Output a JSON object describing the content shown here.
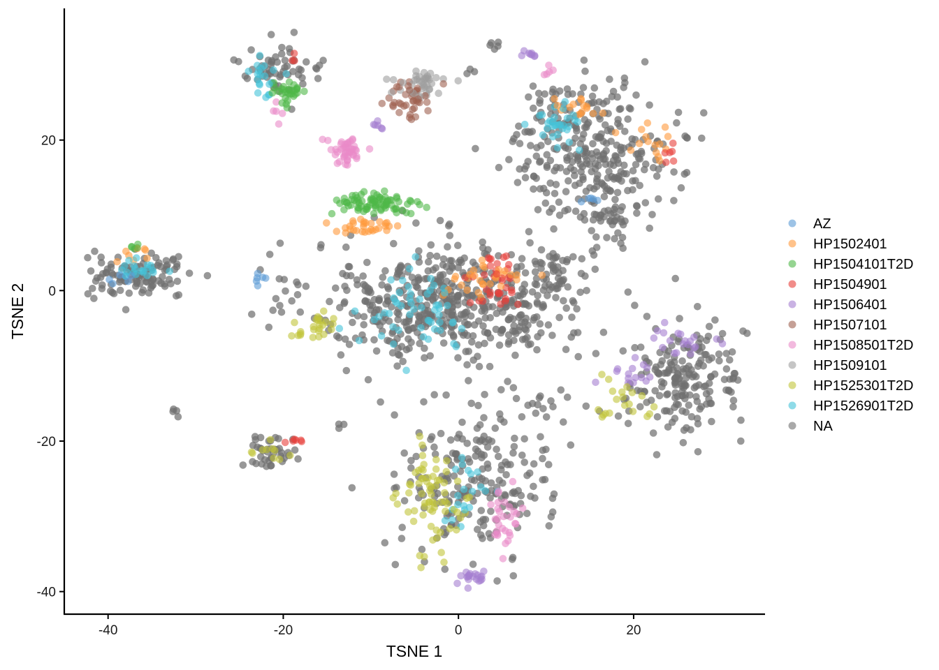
{
  "chart_data": {
    "type": "scatter",
    "xlabel": "TSNE 1",
    "ylabel": "TSNE 2",
    "xlim": [
      -45,
      35
    ],
    "ylim": [
      -43,
      37.5
    ],
    "x_ticks": [
      -40,
      -20,
      0,
      20
    ],
    "y_ticks": [
      -40,
      -20,
      0,
      20
    ],
    "grid": false,
    "legend_position": "right",
    "marker_opacity": 0.6,
    "series": [
      {
        "name": "AZ",
        "color": "#5b9bd5"
      },
      {
        "name": "HP1502401",
        "color": "#ff9a3c"
      },
      {
        "name": "HP1504101T2D",
        "color": "#4fb848"
      },
      {
        "name": "HP1504901",
        "color": "#e8403a"
      },
      {
        "name": "HP1506401",
        "color": "#a57ed0"
      },
      {
        "name": "HP1507101",
        "color": "#9e6050"
      },
      {
        "name": "HP1508501T2D",
        "color": "#ea8ac8"
      },
      {
        "name": "HP1509101",
        "color": "#9e9e9e"
      },
      {
        "name": "HP1525301T2D",
        "color": "#c1c43a"
      },
      {
        "name": "HP1526901T2D",
        "color": "#45c3d8"
      },
      {
        "name": "NA",
        "color": "#707070"
      }
    ],
    "clusters": [
      {
        "name": "NA",
        "cx": -1,
        "cy": -1.5,
        "sx": 8,
        "sy": 4,
        "n": 520
      },
      {
        "name": "NA",
        "cx": 15,
        "cy": 19,
        "sx": 4.5,
        "sy": 4.5,
        "n": 300
      },
      {
        "name": "NA",
        "cx": 26,
        "cy": -12,
        "sx": 3.5,
        "sy": 3.5,
        "n": 190
      },
      {
        "name": "NA",
        "cx": 2,
        "cy": -25,
        "sx": 4.2,
        "sy": 5,
        "n": 210
      },
      {
        "name": "NA",
        "cx": -36.5,
        "cy": 2,
        "sx": 3,
        "sy": 1.5,
        "n": 110
      },
      {
        "name": "NA",
        "cx": -20.5,
        "cy": 29,
        "sx": 2.6,
        "sy": 1.6,
        "n": 60
      },
      {
        "name": "NA",
        "cx": -21.5,
        "cy": -21.5,
        "sx": 1.6,
        "sy": 1.2,
        "n": 40
      },
      {
        "name": "NA",
        "cx": 11,
        "cy": 2.5,
        "sx": 1.4,
        "sy": 1.5,
        "n": 40
      },
      {
        "name": "NA",
        "cx": 17.5,
        "cy": 9.5,
        "sx": 1.6,
        "sy": 1.5,
        "n": 40
      },
      {
        "name": "NA",
        "cx": 10,
        "cy": -16.5,
        "sx": 2,
        "sy": 1.2,
        "n": 18
      },
      {
        "name": "NA",
        "cx": -32.5,
        "cy": -16,
        "sx": 0.4,
        "sy": 0.4,
        "n": 4
      },
      {
        "name": "NA",
        "cx": -13.5,
        "cy": -18,
        "sx": 0.4,
        "sy": 0.3,
        "n": 3
      },
      {
        "name": "NA",
        "cx": -12.5,
        "cy": -26.3,
        "sx": 0.2,
        "sy": 0.2,
        "n": 1
      },
      {
        "name": "NA",
        "cx": -9,
        "cy": -14.8,
        "sx": 0.2,
        "sy": 0.2,
        "n": 1
      },
      {
        "name": "NA",
        "cx": 1,
        "cy": 29,
        "sx": 0.5,
        "sy": 0.3,
        "n": 3
      },
      {
        "name": "NA",
        "cx": 3.5,
        "cy": 32.5,
        "sx": 0.6,
        "sy": 0.4,
        "n": 5
      },
      {
        "name": "NA",
        "cx": 26,
        "cy": 15.5,
        "sx": 0.4,
        "sy": 0.4,
        "n": 2
      },
      {
        "name": "NA",
        "cx": 25.5,
        "cy": 20.5,
        "sx": 0.6,
        "sy": 0.6,
        "n": 3
      },
      {
        "name": "HP1509101",
        "cx": -4,
        "cy": 27.5,
        "sx": 1.6,
        "sy": 0.9,
        "n": 40
      },
      {
        "name": "HP1507101",
        "cx": -5.5,
        "cy": 25.5,
        "sx": 1.2,
        "sy": 1.4,
        "n": 40
      },
      {
        "name": "HP1508501T2D",
        "cx": -12.8,
        "cy": 18.5,
        "sx": 1,
        "sy": 1,
        "n": 45
      },
      {
        "name": "HP1508501T2D",
        "cx": 5,
        "cy": -30,
        "sx": 1,
        "sy": 2.5,
        "n": 30
      },
      {
        "name": "HP1508501T2D",
        "cx": 10,
        "cy": 29,
        "sx": 0.5,
        "sy": 0.4,
        "n": 5
      },
      {
        "name": "HP1508501T2D",
        "cx": -20.5,
        "cy": 23,
        "sx": 0.5,
        "sy": 0.8,
        "n": 5
      },
      {
        "name": "HP1506401",
        "cx": -9,
        "cy": 22,
        "sx": 0.4,
        "sy": 0.4,
        "n": 6
      },
      {
        "name": "HP1506401",
        "cx": 7.8,
        "cy": 31.3,
        "sx": 0.7,
        "sy": 0.3,
        "n": 8
      },
      {
        "name": "HP1506401",
        "cx": 1.5,
        "cy": -38,
        "sx": 1.2,
        "sy": 0.7,
        "n": 20
      },
      {
        "name": "HP1506401",
        "cx": 26,
        "cy": -7,
        "sx": 2,
        "sy": 1.5,
        "n": 20
      },
      {
        "name": "HP1506401",
        "cx": 19.5,
        "cy": -11,
        "sx": 1.2,
        "sy": 1.2,
        "n": 15
      },
      {
        "name": "HP1504101T2D",
        "cx": -9.5,
        "cy": 11.5,
        "sx": 2.5,
        "sy": 0.8,
        "n": 80
      },
      {
        "name": "HP1504101T2D",
        "cx": -19.5,
        "cy": 26,
        "sx": 1.2,
        "sy": 1,
        "n": 30
      },
      {
        "name": "HP1504101T2D",
        "cx": -37,
        "cy": 6,
        "sx": 0.4,
        "sy": 0.3,
        "n": 5
      },
      {
        "name": "HP1502401",
        "cx": -10.5,
        "cy": 8.5,
        "sx": 2,
        "sy": 0.7,
        "n": 30
      },
      {
        "name": "HP1502401",
        "cx": 3,
        "cy": 1.5,
        "sx": 2.5,
        "sy": 1.2,
        "n": 30
      },
      {
        "name": "HP1502401",
        "cx": 12.5,
        "cy": 24.5,
        "sx": 1.5,
        "sy": 0.8,
        "n": 15
      },
      {
        "name": "HP1502401",
        "cx": 22,
        "cy": 19,
        "sx": 1.5,
        "sy": 1.5,
        "n": 15
      },
      {
        "name": "HP1502401",
        "cx": -37,
        "cy": 5,
        "sx": 1.4,
        "sy": 0.5,
        "n": 8
      },
      {
        "name": "HP1504901",
        "cx": 4.5,
        "cy": 1,
        "sx": 1.5,
        "sy": 2,
        "n": 35
      },
      {
        "name": "HP1504901",
        "cx": 24,
        "cy": 17.5,
        "sx": 0.5,
        "sy": 0.8,
        "n": 6
      },
      {
        "name": "HP1504901",
        "cx": -19,
        "cy": -20,
        "sx": 0.8,
        "sy": 0.4,
        "n": 6
      },
      {
        "name": "HP1504901",
        "cx": -19,
        "cy": 31,
        "sx": 0.4,
        "sy": 0.4,
        "n": 3
      },
      {
        "name": "HP1526901T2D",
        "cx": -4.5,
        "cy": -2.5,
        "sx": 3,
        "sy": 2.5,
        "n": 55
      },
      {
        "name": "HP1526901T2D",
        "cx": 11,
        "cy": 22,
        "sx": 1.3,
        "sy": 1.5,
        "n": 30
      },
      {
        "name": "HP1526901T2D",
        "cx": -22,
        "cy": 28.5,
        "sx": 1,
        "sy": 1.5,
        "n": 20
      },
      {
        "name": "HP1526901T2D",
        "cx": -36.5,
        "cy": 3,
        "sx": 1.5,
        "sy": 0.7,
        "n": 20
      },
      {
        "name": "HP1526901T2D",
        "cx": 0,
        "cy": -28,
        "sx": 2,
        "sy": 3,
        "n": 20
      },
      {
        "name": "HP1525301T2D",
        "cx": -16,
        "cy": -5,
        "sx": 1.2,
        "sy": 0.8,
        "n": 25
      },
      {
        "name": "HP1525301T2D",
        "cx": -2.5,
        "cy": -28,
        "sx": 2,
        "sy": 4,
        "n": 70
      },
      {
        "name": "HP1525301T2D",
        "cx": 19,
        "cy": -15,
        "sx": 2,
        "sy": 1.5,
        "n": 20
      },
      {
        "name": "HP1525301T2D",
        "cx": -21.5,
        "cy": -21.5,
        "sx": 1,
        "sy": 0.8,
        "n": 10
      },
      {
        "name": "AZ",
        "cx": -22.5,
        "cy": 1.8,
        "sx": 0.5,
        "sy": 0.6,
        "n": 6
      },
      {
        "name": "AZ",
        "cx": 15,
        "cy": 12,
        "sx": 0.6,
        "sy": 0.3,
        "n": 5
      },
      {
        "name": "AZ",
        "cx": -38,
        "cy": 2,
        "sx": 0.8,
        "sy": 0.5,
        "n": 6
      }
    ]
  }
}
